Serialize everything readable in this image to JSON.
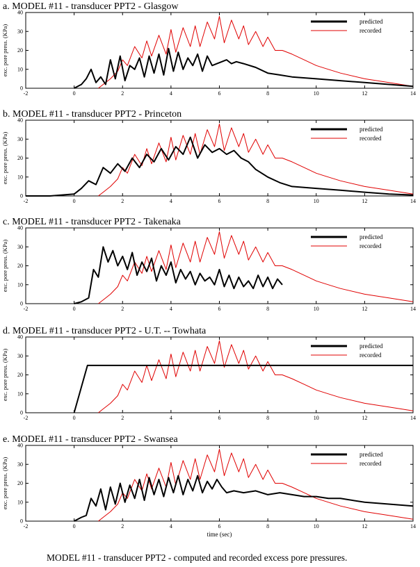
{
  "figure": {
    "caption": "MODEL #11 - transducer PPT2 - computed and recorded excess pore pressures.",
    "legend": {
      "predicted": "predicted",
      "recorded": "recorded"
    },
    "ylabel": "exc. pore press. (KPa)",
    "xlabel": "time (sec)",
    "colors": {
      "predicted": "#000000",
      "recorded": "#e00000"
    }
  },
  "chart_data": [
    {
      "type": "line",
      "title": "a. MODEL #11 - transducer PPT2 - Glasgow",
      "xlabel": "",
      "ylabel": "exc. pore press. (KPa)",
      "xlim": [
        -2,
        14
      ],
      "ylim": [
        0,
        40
      ],
      "xticks": [
        -2,
        0,
        2,
        4,
        6,
        8,
        10,
        12,
        14
      ],
      "yticks": [
        0,
        10,
        20,
        30,
        40
      ],
      "legend_position": "top-right",
      "series": [
        {
          "name": "predicted",
          "color": "#000000",
          "x": [
            0.0,
            0.3,
            0.5,
            0.7,
            0.9,
            1.1,
            1.3,
            1.5,
            1.7,
            1.9,
            2.1,
            2.3,
            2.5,
            2.7,
            2.9,
            3.1,
            3.3,
            3.5,
            3.7,
            3.9,
            4.1,
            4.3,
            4.5,
            4.7,
            4.9,
            5.1,
            5.3,
            5.5,
            5.7,
            5.9,
            6.1,
            6.3,
            6.5,
            6.7,
            7.0,
            7.5,
            8.0,
            8.5,
            9.0,
            10.0,
            11.0,
            12.0,
            13.0,
            14.0
          ],
          "y": [
            0,
            2,
            5,
            10,
            3,
            6,
            2,
            15,
            5,
            17,
            4,
            12,
            10,
            16,
            6,
            17,
            8,
            18,
            7,
            21,
            9,
            19,
            10,
            16,
            12,
            18,
            9,
            17,
            12,
            13,
            14,
            15,
            13,
            14,
            13,
            11,
            8,
            7,
            6,
            5,
            4,
            3,
            2,
            1
          ]
        },
        {
          "name": "recorded",
          "color": "#e00000",
          "x": [
            1.0,
            1.2,
            1.5,
            1.8,
            2.0,
            2.2,
            2.5,
            2.8,
            3.0,
            3.2,
            3.5,
            3.8,
            4.0,
            4.2,
            4.5,
            4.8,
            5.0,
            5.2,
            5.5,
            5.8,
            6.0,
            6.2,
            6.5,
            6.8,
            7.0,
            7.2,
            7.5,
            7.8,
            8.0,
            8.3,
            8.6,
            9.0,
            9.5,
            10.0,
            10.5,
            11.0,
            12.0,
            13.0,
            14.0
          ],
          "y": [
            0,
            2,
            5,
            9,
            15,
            12,
            22,
            16,
            25,
            17,
            28,
            18,
            31,
            19,
            32,
            22,
            33,
            22,
            35,
            26,
            38,
            24,
            36,
            26,
            33,
            23,
            30,
            22,
            27,
            20,
            20,
            18,
            15,
            12,
            10,
            8,
            5,
            3,
            1
          ]
        }
      ]
    },
    {
      "type": "line",
      "title": "b. MODEL #11 - transducer PPT2 - Princeton",
      "xlabel": "",
      "ylabel": "exc. pore press. (KPa)",
      "xlim": [
        -2,
        14
      ],
      "ylim": [
        0,
        40
      ],
      "xticks": [
        -2,
        0,
        2,
        4,
        6,
        8,
        10,
        12,
        14
      ],
      "yticks": [
        0,
        10,
        20,
        30,
        40
      ],
      "legend_position": "top-right",
      "series": [
        {
          "name": "predicted",
          "color": "#000000",
          "x": [
            -2.0,
            -1.0,
            0.0,
            0.3,
            0.6,
            0.9,
            1.2,
            1.5,
            1.8,
            2.1,
            2.4,
            2.7,
            3.0,
            3.3,
            3.6,
            3.9,
            4.2,
            4.5,
            4.8,
            5.1,
            5.4,
            5.7,
            6.0,
            6.3,
            6.6,
            6.9,
            7.2,
            7.5,
            8.0,
            8.5,
            9.0,
            10.0,
            11.0,
            12.0,
            13.0,
            14.0
          ],
          "y": [
            0,
            0,
            1,
            4,
            8,
            6,
            15,
            12,
            17,
            13,
            20,
            15,
            22,
            18,
            25,
            19,
            26,
            22,
            31,
            20,
            27,
            23,
            25,
            22,
            24,
            20,
            18,
            14,
            10,
            7,
            5,
            4,
            3,
            2,
            1,
            0.5
          ]
        },
        {
          "name": "recorded",
          "color": "#e00000",
          "x": [
            1.0,
            1.2,
            1.5,
            1.8,
            2.0,
            2.2,
            2.5,
            2.8,
            3.0,
            3.2,
            3.5,
            3.8,
            4.0,
            4.2,
            4.5,
            4.8,
            5.0,
            5.2,
            5.5,
            5.8,
            6.0,
            6.2,
            6.5,
            6.8,
            7.0,
            7.2,
            7.5,
            7.8,
            8.0,
            8.3,
            8.6,
            9.0,
            9.5,
            10.0,
            10.5,
            11.0,
            12.0,
            13.0,
            14.0
          ],
          "y": [
            0,
            2,
            5,
            9,
            15,
            12,
            22,
            16,
            25,
            17,
            28,
            18,
            31,
            19,
            32,
            22,
            33,
            22,
            35,
            26,
            38,
            24,
            36,
            26,
            33,
            23,
            30,
            22,
            27,
            20,
            20,
            18,
            15,
            12,
            10,
            8,
            5,
            3,
            1
          ]
        }
      ]
    },
    {
      "type": "line",
      "title": "c. MODEL #11 - transducer PPT2 - Takenaka",
      "xlabel": "",
      "ylabel": "exc. pore press. (KPa)",
      "xlim": [
        -2,
        14
      ],
      "ylim": [
        0,
        40
      ],
      "xticks": [
        -2,
        0,
        2,
        4,
        6,
        8,
        10,
        12,
        14
      ],
      "yticks": [
        0,
        10,
        20,
        30,
        40
      ],
      "legend_position": "top-right",
      "series": [
        {
          "name": "predicted",
          "color": "#000000",
          "x": [
            0.0,
            0.3,
            0.6,
            0.8,
            1.0,
            1.2,
            1.4,
            1.6,
            1.8,
            2.0,
            2.2,
            2.4,
            2.6,
            2.8,
            3.0,
            3.2,
            3.4,
            3.6,
            3.8,
            4.0,
            4.2,
            4.4,
            4.6,
            4.8,
            5.0,
            5.2,
            5.4,
            5.6,
            5.8,
            6.0,
            6.2,
            6.4,
            6.6,
            6.8,
            7.0,
            7.2,
            7.4,
            7.6,
            7.8,
            8.0,
            8.2,
            8.4,
            8.6
          ],
          "y": [
            0,
            1,
            3,
            18,
            14,
            30,
            22,
            28,
            20,
            25,
            18,
            27,
            15,
            22,
            17,
            24,
            12,
            20,
            15,
            22,
            11,
            18,
            13,
            17,
            10,
            16,
            12,
            14,
            10,
            18,
            9,
            15,
            8,
            14,
            9,
            12,
            8,
            15,
            9,
            14,
            8,
            13,
            10
          ]
        },
        {
          "name": "recorded",
          "color": "#e00000",
          "x": [
            1.0,
            1.2,
            1.5,
            1.8,
            2.0,
            2.2,
            2.5,
            2.8,
            3.0,
            3.2,
            3.5,
            3.8,
            4.0,
            4.2,
            4.5,
            4.8,
            5.0,
            5.2,
            5.5,
            5.8,
            6.0,
            6.2,
            6.5,
            6.8,
            7.0,
            7.2,
            7.5,
            7.8,
            8.0,
            8.3,
            8.6,
            9.0,
            9.5,
            10.0,
            10.5,
            11.0,
            12.0,
            13.0,
            14.0
          ],
          "y": [
            0,
            2,
            5,
            9,
            15,
            12,
            22,
            16,
            25,
            17,
            28,
            18,
            31,
            19,
            32,
            22,
            33,
            22,
            35,
            26,
            38,
            24,
            36,
            26,
            33,
            23,
            30,
            22,
            27,
            20,
            20,
            18,
            15,
            12,
            10,
            8,
            5,
            3,
            1
          ]
        }
      ]
    },
    {
      "type": "line",
      "title": "d. MODEL #11 - transducer PPT2 - U.T. -- Towhata",
      "xlabel": "",
      "ylabel": "exc. pore press. (KPa)",
      "xlim": [
        -2,
        14
      ],
      "ylim": [
        0,
        40
      ],
      "xticks": [
        -2,
        0,
        2,
        4,
        6,
        8,
        10,
        12,
        14
      ],
      "yticks": [
        0,
        10,
        20,
        30,
        40
      ],
      "legend_position": "top-right",
      "series": [
        {
          "name": "predicted",
          "color": "#000000",
          "x": [
            0.0,
            0.55,
            14.0
          ],
          "y": [
            0,
            25,
            25
          ]
        },
        {
          "name": "recorded",
          "color": "#e00000",
          "x": [
            1.0,
            1.2,
            1.5,
            1.8,
            2.0,
            2.2,
            2.5,
            2.8,
            3.0,
            3.2,
            3.5,
            3.8,
            4.0,
            4.2,
            4.5,
            4.8,
            5.0,
            5.2,
            5.5,
            5.8,
            6.0,
            6.2,
            6.5,
            6.8,
            7.0,
            7.2,
            7.5,
            7.8,
            8.0,
            8.3,
            8.6,
            9.0,
            9.5,
            10.0,
            10.5,
            11.0,
            12.0,
            13.0,
            14.0
          ],
          "y": [
            0,
            2,
            5,
            9,
            15,
            12,
            22,
            16,
            25,
            17,
            28,
            18,
            31,
            19,
            32,
            22,
            33,
            22,
            35,
            26,
            38,
            24,
            36,
            26,
            33,
            23,
            30,
            22,
            27,
            20,
            20,
            18,
            15,
            12,
            10,
            8,
            5,
            3,
            1
          ]
        }
      ]
    },
    {
      "type": "line",
      "title": "e. MODEL #11 - transducer PPT2 - Swansea",
      "xlabel": "time (sec)",
      "ylabel": "exc. pore press. (KPa)",
      "xlim": [
        -2,
        14
      ],
      "ylim": [
        0,
        40
      ],
      "xticks": [
        -2,
        0,
        2,
        4,
        6,
        8,
        10,
        12,
        14
      ],
      "yticks": [
        0,
        10,
        20,
        30,
        40
      ],
      "legend_position": "top-right",
      "series": [
        {
          "name": "predicted",
          "color": "#000000",
          "x": [
            0.0,
            0.3,
            0.5,
            0.7,
            0.9,
            1.1,
            1.3,
            1.5,
            1.7,
            1.9,
            2.1,
            2.3,
            2.5,
            2.7,
            2.9,
            3.1,
            3.3,
            3.5,
            3.7,
            3.9,
            4.1,
            4.3,
            4.5,
            4.7,
            4.9,
            5.1,
            5.3,
            5.5,
            5.7,
            5.9,
            6.1,
            6.3,
            6.6,
            7.0,
            7.5,
            8.0,
            8.5,
            9.0,
            9.5,
            10.0,
            10.5,
            11.0,
            12.0,
            13.0,
            14.0
          ],
          "y": [
            0,
            2,
            3,
            12,
            8,
            17,
            6,
            18,
            9,
            20,
            10,
            19,
            12,
            22,
            11,
            23,
            14,
            22,
            13,
            23,
            15,
            24,
            14,
            22,
            16,
            24,
            15,
            21,
            17,
            22,
            18,
            15,
            16,
            15,
            16,
            14,
            15,
            14,
            13,
            13,
            12,
            12,
            10,
            9,
            8
          ]
        },
        {
          "name": "recorded",
          "color": "#e00000",
          "x": [
            1.0,
            1.2,
            1.5,
            1.8,
            2.0,
            2.2,
            2.5,
            2.8,
            3.0,
            3.2,
            3.5,
            3.8,
            4.0,
            4.2,
            4.5,
            4.8,
            5.0,
            5.2,
            5.5,
            5.8,
            6.0,
            6.2,
            6.5,
            6.8,
            7.0,
            7.2,
            7.5,
            7.8,
            8.0,
            8.3,
            8.6,
            9.0,
            9.5,
            10.0,
            10.5,
            11.0,
            12.0,
            13.0,
            14.0
          ],
          "y": [
            0,
            2,
            5,
            9,
            15,
            12,
            22,
            16,
            25,
            17,
            28,
            18,
            31,
            19,
            32,
            22,
            33,
            22,
            35,
            26,
            38,
            24,
            36,
            26,
            33,
            23,
            30,
            22,
            27,
            20,
            20,
            18,
            15,
            12,
            10,
            8,
            5,
            3,
            1
          ]
        }
      ]
    }
  ]
}
